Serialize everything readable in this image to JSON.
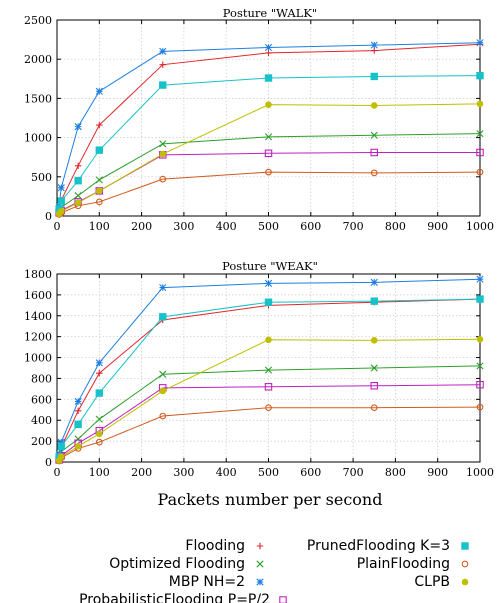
{
  "chart_data": [
    {
      "type": "line",
      "title": "Posture \"WALK\"",
      "xlabel": "",
      "ylabel": "",
      "xlim": [
        0,
        1000
      ],
      "ylim": [
        0,
        2500
      ],
      "xticks": [
        0,
        100,
        200,
        300,
        400,
        500,
        600,
        700,
        800,
        900,
        1000
      ],
      "yticks": [
        0,
        500,
        1000,
        1500,
        2000,
        2500
      ],
      "grid": true,
      "x": [
        5,
        10,
        50,
        100,
        250,
        500,
        750,
        1000
      ],
      "series": [
        {
          "name": "Flooding",
          "color": "#e3262a",
          "marker": "plus",
          "values": [
            100,
            200,
            640,
            1160,
            1930,
            2080,
            2110,
            2190
          ]
        },
        {
          "name": "Optimized Flooding",
          "color": "#2ca02c",
          "marker": "cross",
          "values": [
            60,
            110,
            260,
            460,
            920,
            1010,
            1030,
            1050
          ]
        },
        {
          "name": "MBP NH=2",
          "color": "#1f7fe0",
          "marker": "star",
          "values": [
            130,
            360,
            1140,
            1590,
            2100,
            2150,
            2180,
            2210
          ]
        },
        {
          "name": "ProbabilisticFlooding P=P/2",
          "color": "#c020c0",
          "marker": "square",
          "values": [
            40,
            70,
            180,
            320,
            780,
            800,
            810,
            810
          ]
        },
        {
          "name": "PrunedFlooding K=3",
          "color": "#17c2c9",
          "marker": "filledsquare",
          "values": [
            90,
            190,
            450,
            840,
            1670,
            1760,
            1780,
            1790
          ]
        },
        {
          "name": "PlainFlooding",
          "color": "#d25a1e",
          "marker": "circle",
          "values": [
            20,
            40,
            130,
            180,
            470,
            560,
            550,
            560
          ]
        },
        {
          "name": "CLPB",
          "color": "#bfbf00",
          "marker": "filledcircle",
          "values": [
            30,
            60,
            170,
            320,
            790,
            1420,
            1410,
            1430
          ]
        }
      ]
    },
    {
      "type": "line",
      "title": "Posture \"WEAK\"",
      "xlabel": "Packets number per second",
      "ylabel": "",
      "xlim": [
        0,
        1000
      ],
      "ylim": [
        0,
        1800
      ],
      "xticks": [
        0,
        100,
        200,
        300,
        400,
        500,
        600,
        700,
        800,
        900,
        1000
      ],
      "yticks": [
        0,
        200,
        400,
        600,
        800,
        1000,
        1200,
        1400,
        1600,
        1800
      ],
      "grid": true,
      "x": [
        5,
        10,
        50,
        100,
        250,
        500,
        750,
        1000
      ],
      "series": [
        {
          "name": "Flooding",
          "color": "#e3262a",
          "marker": "plus",
          "values": [
            60,
            140,
            490,
            850,
            1360,
            1500,
            1530,
            1560
          ]
        },
        {
          "name": "Optimized Flooding",
          "color": "#2ca02c",
          "marker": "cross",
          "values": [
            40,
            100,
            220,
            410,
            840,
            880,
            900,
            920
          ]
        },
        {
          "name": "MBP NH=2",
          "color": "#1f7fe0",
          "marker": "star",
          "values": [
            80,
            190,
            580,
            950,
            1670,
            1710,
            1720,
            1750
          ]
        },
        {
          "name": "ProbabilisticFlooding P=P/2",
          "color": "#c020c0",
          "marker": "square",
          "values": [
            20,
            60,
            180,
            300,
            710,
            720,
            730,
            740
          ]
        },
        {
          "name": "PrunedFlooding K=3",
          "color": "#17c2c9",
          "marker": "filledsquare",
          "values": [
            50,
            150,
            360,
            660,
            1390,
            1530,
            1540,
            1560
          ]
        },
        {
          "name": "PlainFlooding",
          "color": "#d25a1e",
          "marker": "circle",
          "values": [
            10,
            40,
            130,
            190,
            440,
            520,
            520,
            525
          ]
        },
        {
          "name": "CLPB",
          "color": "#bfbf00",
          "marker": "filledcircle",
          "values": [
            15,
            50,
            150,
            270,
            680,
            1170,
            1165,
            1175
          ]
        }
      ]
    }
  ],
  "legend": {
    "placement": "bottom",
    "columns": [
      [
        "Flooding",
        "Optimized Flooding",
        "MBP NH=2",
        "ProbabilisticFlooding P=P/2"
      ],
      [
        "PrunedFlooding K=3",
        "PlainFlooding",
        "CLPB"
      ]
    ]
  }
}
